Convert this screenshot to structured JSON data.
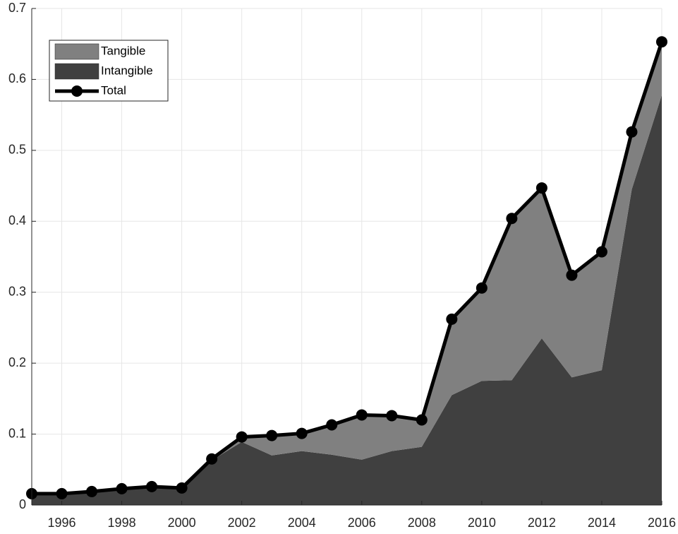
{
  "chart_data": {
    "type": "area",
    "stacked": true,
    "x": [
      1995,
      1996,
      1997,
      1998,
      1999,
      2000,
      2001,
      2002,
      2003,
      2004,
      2005,
      2006,
      2007,
      2008,
      2009,
      2010,
      2011,
      2012,
      2013,
      2014,
      2015,
      2016
    ],
    "series": [
      {
        "name": "Tangible",
        "kind": "area",
        "color": "#808080",
        "values": [
          0.001,
          0.001,
          0.001,
          0.001,
          0.001,
          0.001,
          0.002,
          0.007,
          0.028,
          0.025,
          0.042,
          0.063,
          0.05,
          0.038,
          0.107,
          0.131,
          0.228,
          0.212,
          0.144,
          0.167,
          0.081,
          0.075
        ]
      },
      {
        "name": "Intangible",
        "kind": "area",
        "color": "#404040",
        "values": [
          0.015,
          0.015,
          0.018,
          0.022,
          0.025,
          0.023,
          0.063,
          0.089,
          0.07,
          0.076,
          0.071,
          0.064,
          0.076,
          0.082,
          0.155,
          0.175,
          0.176,
          0.235,
          0.18,
          0.19,
          0.445,
          0.578
        ]
      },
      {
        "name": "Total",
        "kind": "line",
        "color": "#000000",
        "values": [
          0.016,
          0.016,
          0.019,
          0.023,
          0.026,
          0.024,
          0.065,
          0.096,
          0.098,
          0.101,
          0.113,
          0.127,
          0.126,
          0.12,
          0.262,
          0.306,
          0.404,
          0.447,
          0.324,
          0.357,
          0.526,
          0.653
        ]
      }
    ],
    "xlim": [
      1995,
      2016
    ],
    "ylim": [
      0,
      0.7
    ],
    "xticks": [
      1996,
      1998,
      2000,
      2002,
      2004,
      2006,
      2008,
      2010,
      2012,
      2014,
      2016
    ],
    "yticks": [
      0,
      0.1,
      0.2,
      0.3,
      0.4,
      0.5,
      0.6,
      0.7
    ],
    "grid": true,
    "legend": "upper-left"
  }
}
